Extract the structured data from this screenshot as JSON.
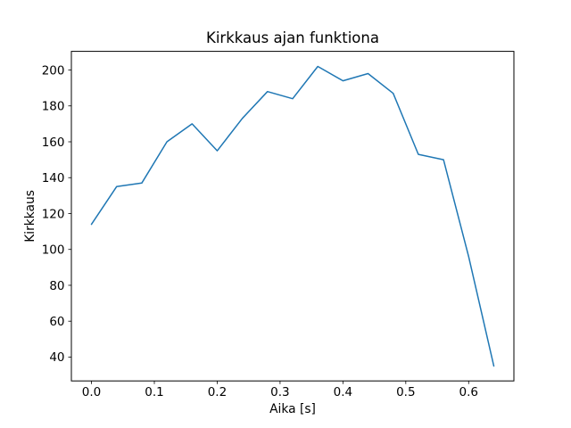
{
  "figure": {
    "background": "#ffffff",
    "title": "Kirkkaus ajan funktiona",
    "xlabel": "Aika [s]",
    "ylabel": "Kirkkaus"
  },
  "chart_data": {
    "type": "line",
    "title": "Kirkkaus ajan funktiona",
    "xlabel": "Aika [s]",
    "ylabel": "Kirkkaus",
    "series": [
      {
        "name": "Kirkkaus",
        "color": "#1f77b4",
        "x": [
          0.0,
          0.04,
          0.08,
          0.12,
          0.16,
          0.2,
          0.24,
          0.28,
          0.32,
          0.36,
          0.4,
          0.44,
          0.48,
          0.52,
          0.56,
          0.6,
          0.64
        ],
        "y": [
          114,
          135,
          137,
          160,
          170,
          155,
          173,
          188,
          184,
          202,
          194,
          198,
          187,
          153,
          150,
          96,
          35
        ]
      }
    ],
    "xticks": [
      0.0,
      0.1,
      0.2,
      0.3,
      0.4,
      0.5,
      0.6
    ],
    "xtick_labels": [
      "0.0",
      "0.1",
      "0.2",
      "0.3",
      "0.4",
      "0.5",
      "0.6"
    ],
    "yticks": [
      40,
      60,
      80,
      100,
      120,
      140,
      160,
      180,
      200
    ],
    "ytick_labels": [
      "40",
      "60",
      "80",
      "100",
      "120",
      "140",
      "160",
      "180",
      "200"
    ],
    "xlim": [
      -0.032,
      0.672
    ],
    "ylim": [
      26.7,
      210.4
    ],
    "grid": false,
    "legend": null,
    "spine_color": "#000000",
    "line_width": 1.5
  }
}
